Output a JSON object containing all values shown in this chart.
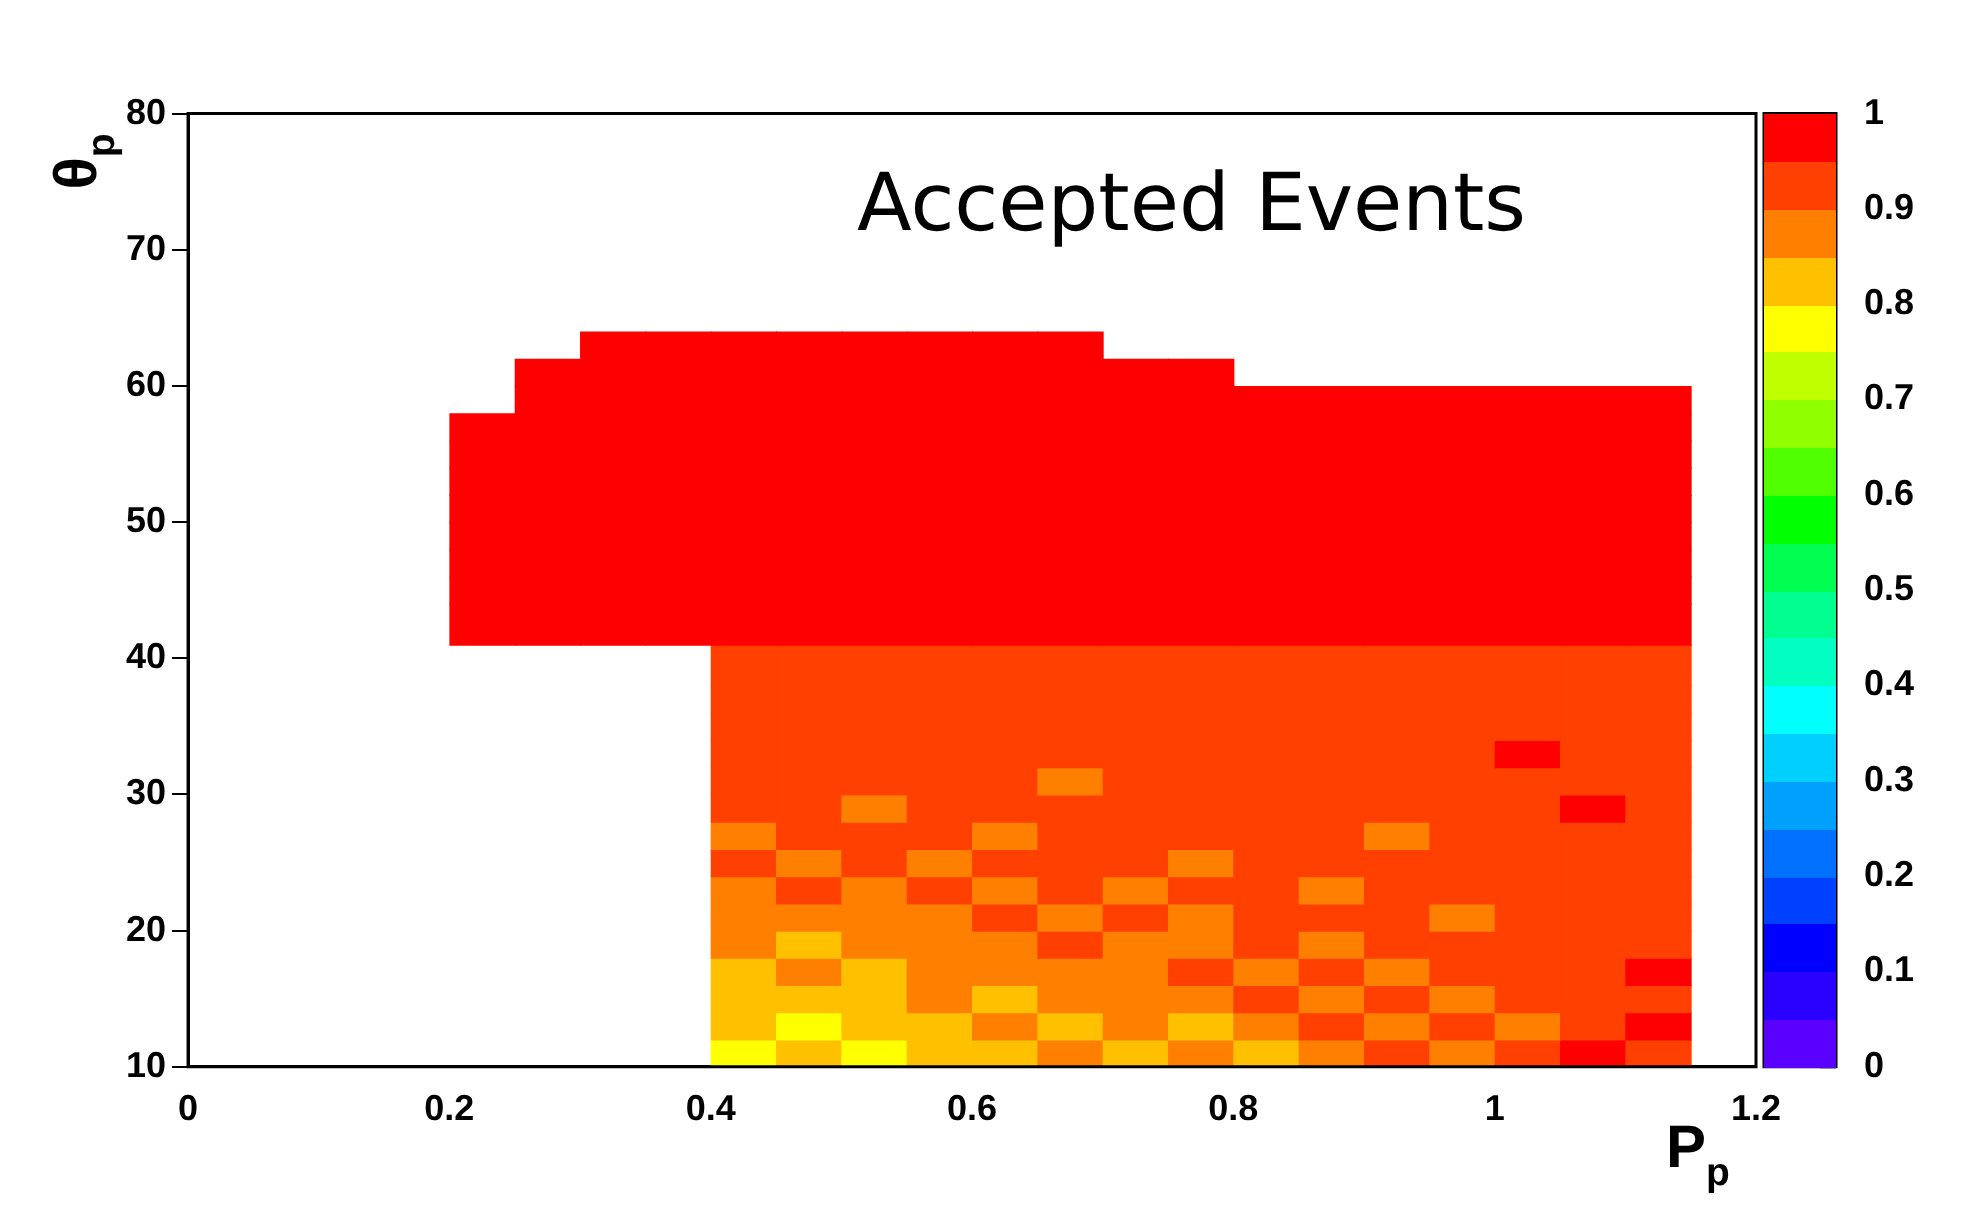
{
  "chart_data": {
    "type": "heatmap",
    "title": "Accepted Events",
    "xlabel": "P$_{p}$",
    "ylabel": "θ$_{p}$",
    "x": [
      0.225,
      0.275,
      0.325,
      0.375,
      0.425,
      0.475,
      0.525,
      0.575,
      0.625,
      0.675,
      0.725,
      0.775,
      0.825,
      0.875,
      0.925,
      0.975,
      1.025,
      1.075,
      1.125
    ],
    "y": [
      11,
      13,
      15,
      17,
      19,
      21,
      23,
      25,
      27,
      29,
      31,
      33,
      35,
      37,
      39,
      43,
      45,
      47,
      49,
      51,
      53,
      55,
      57,
      59,
      61,
      63
    ],
    "cells": [
      [
        null,
        null,
        null,
        null,
        0.75,
        0.8,
        0.75,
        0.8,
        0.8,
        0.85,
        0.8,
        0.85,
        0.8,
        0.85,
        0.9,
        0.85,
        0.9,
        0.95,
        0.9
      ],
      [
        null,
        null,
        null,
        null,
        0.8,
        0.75,
        0.8,
        0.8,
        0.85,
        0.8,
        0.85,
        0.8,
        0.85,
        0.9,
        0.85,
        0.9,
        0.85,
        0.9,
        0.95
      ],
      [
        null,
        null,
        null,
        null,
        0.8,
        0.8,
        0.8,
        0.85,
        0.8,
        0.85,
        0.85,
        0.85,
        0.9,
        0.85,
        0.9,
        0.85,
        0.9,
        0.9,
        0.9
      ],
      [
        null,
        null,
        null,
        null,
        0.8,
        0.85,
        0.8,
        0.85,
        0.85,
        0.85,
        0.85,
        0.9,
        0.85,
        0.9,
        0.85,
        0.9,
        0.9,
        0.9,
        0.95
      ],
      [
        null,
        null,
        null,
        null,
        0.85,
        0.8,
        0.85,
        0.85,
        0.85,
        0.9,
        0.85,
        0.85,
        0.9,
        0.85,
        0.9,
        0.9,
        0.9,
        0.9,
        0.9
      ],
      [
        null,
        null,
        null,
        null,
        0.85,
        0.85,
        0.85,
        0.85,
        0.9,
        0.85,
        0.9,
        0.85,
        0.9,
        0.9,
        0.9,
        0.85,
        0.9,
        0.9,
        0.9
      ],
      [
        null,
        null,
        null,
        null,
        0.85,
        0.9,
        0.85,
        0.9,
        0.85,
        0.9,
        0.85,
        0.9,
        0.9,
        0.85,
        0.9,
        0.9,
        0.9,
        0.9,
        0.9
      ],
      [
        null,
        null,
        null,
        null,
        0.9,
        0.85,
        0.9,
        0.85,
        0.9,
        0.9,
        0.9,
        0.85,
        0.9,
        0.9,
        0.9,
        0.9,
        0.9,
        0.9,
        0.9
      ],
      [
        null,
        null,
        null,
        null,
        0.85,
        0.9,
        0.9,
        0.9,
        0.85,
        0.9,
        0.9,
        0.9,
        0.9,
        0.9,
        0.85,
        0.9,
        0.9,
        0.9,
        0.9
      ],
      [
        null,
        null,
        null,
        null,
        0.9,
        0.9,
        0.85,
        0.9,
        0.9,
        0.9,
        0.9,
        0.9,
        0.9,
        0.9,
        0.9,
        0.9,
        0.9,
        0.95,
        0.9
      ],
      [
        null,
        null,
        null,
        null,
        0.9,
        0.9,
        0.9,
        0.9,
        0.9,
        0.85,
        0.9,
        0.9,
        0.9,
        0.9,
        0.9,
        0.9,
        0.9,
        0.9,
        0.9
      ],
      [
        null,
        null,
        null,
        null,
        0.9,
        0.9,
        0.9,
        0.9,
        0.9,
        0.9,
        0.9,
        0.9,
        0.9,
        0.9,
        0.9,
        0.9,
        0.95,
        0.9,
        0.9
      ],
      [
        null,
        null,
        null,
        null,
        0.9,
        0.9,
        0.9,
        0.9,
        0.9,
        0.9,
        0.9,
        0.9,
        0.9,
        0.9,
        0.9,
        0.9,
        0.9,
        0.9,
        0.9
      ],
      [
        null,
        null,
        null,
        null,
        0.9,
        0.9,
        0.9,
        0.9,
        0.9,
        0.9,
        0.9,
        0.9,
        0.9,
        0.9,
        0.9,
        0.9,
        0.9,
        0.9,
        0.9
      ],
      [
        null,
        null,
        null,
        null,
        0.9,
        0.9,
        0.9,
        0.9,
        0.9,
        0.9,
        0.9,
        0.9,
        0.9,
        0.9,
        0.9,
        0.9,
        0.9,
        0.9,
        0.9
      ],
      [
        1,
        1,
        1,
        1,
        1,
        1,
        1,
        1,
        1,
        1,
        1,
        1,
        1,
        1,
        1,
        1,
        1,
        1,
        1
      ],
      [
        1,
        1,
        1,
        1,
        1,
        1,
        1,
        1,
        1,
        1,
        1,
        1,
        1,
        1,
        1,
        1,
        1,
        1,
        1
      ],
      [
        1,
        1,
        1,
        1,
        1,
        1,
        1,
        1,
        1,
        1,
        1,
        1,
        1,
        1,
        1,
        1,
        1,
        1,
        1
      ],
      [
        1,
        1,
        1,
        1,
        1,
        1,
        1,
        1,
        1,
        1,
        1,
        1,
        1,
        1,
        1,
        1,
        1,
        1,
        1
      ],
      [
        1,
        1,
        1,
        1,
        1,
        1,
        1,
        1,
        1,
        1,
        1,
        1,
        1,
        1,
        1,
        1,
        1,
        1,
        1
      ],
      [
        1,
        1,
        1,
        1,
        1,
        1,
        1,
        1,
        1,
        1,
        1,
        1,
        1,
        1,
        1,
        1,
        1,
        1,
        1
      ],
      [
        1,
        1,
        1,
        1,
        1,
        1,
        1,
        1,
        1,
        1,
        1,
        1,
        1,
        1,
        1,
        1,
        1,
        1,
        1
      ],
      [
        1,
        1,
        1,
        1,
        1,
        1,
        1,
        1,
        1,
        1,
        1,
        1,
        1,
        1,
        1,
        1,
        1,
        1,
        1
      ],
      [
        null,
        1,
        1,
        1,
        1,
        1,
        1,
        1,
        1,
        1,
        1,
        1,
        1,
        1,
        1,
        1,
        1,
        1,
        1
      ],
      [
        null,
        1,
        1,
        1,
        1,
        1,
        1,
        1,
        1,
        1,
        1,
        1,
        null,
        null,
        null,
        null,
        null,
        null,
        null
      ],
      [
        null,
        null,
        1,
        1,
        1,
        1,
        1,
        1,
        1,
        1,
        null,
        null,
        null,
        null,
        null,
        null,
        null,
        null,
        null
      ]
    ],
    "xlim": [
      0,
      1.2
    ],
    "xticks": [
      0,
      0.2,
      0.4,
      0.6,
      0.8,
      1,
      1.2
    ],
    "ylim": [
      10,
      80
    ],
    "yticks": [
      10,
      20,
      30,
      40,
      50,
      60,
      70,
      80
    ],
    "clim": [
      0,
      1
    ],
    "cticks": [
      0,
      0.1,
      0.2,
      0.3,
      0.4,
      0.5,
      0.6,
      0.7,
      0.8,
      0.9,
      1
    ],
    "grid": false
  }
}
